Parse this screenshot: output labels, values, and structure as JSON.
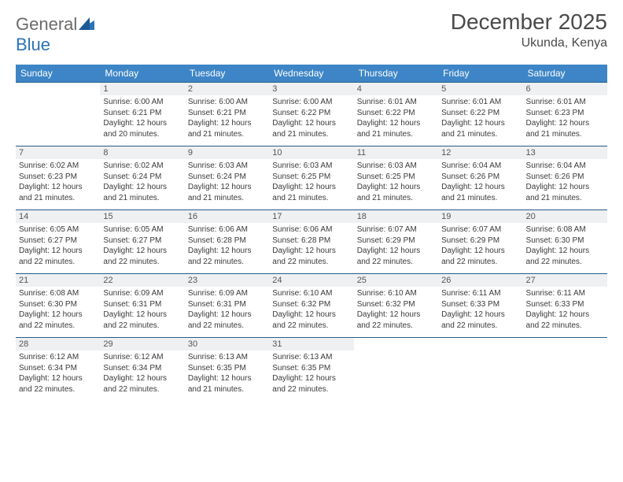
{
  "logo": {
    "text_general": "General",
    "text_blue": "Blue"
  },
  "title": "December 2025",
  "location": "Ukunda, Kenya",
  "colors": {
    "header_bg": "#3d85c6",
    "header_text": "#ffffff",
    "daynum_bg": "#eef0f2",
    "row_divider": "#2a5d8a",
    "logo_gray": "#6a6a6a",
    "logo_blue": "#2a73b7"
  },
  "weekdays": [
    "Sunday",
    "Monday",
    "Tuesday",
    "Wednesday",
    "Thursday",
    "Friday",
    "Saturday"
  ],
  "weeks": [
    [
      null,
      {
        "n": "1",
        "sr": "6:00 AM",
        "ss": "6:21 PM",
        "dl": "12 hours and 20 minutes."
      },
      {
        "n": "2",
        "sr": "6:00 AM",
        "ss": "6:21 PM",
        "dl": "12 hours and 21 minutes."
      },
      {
        "n": "3",
        "sr": "6:00 AM",
        "ss": "6:22 PM",
        "dl": "12 hours and 21 minutes."
      },
      {
        "n": "4",
        "sr": "6:01 AM",
        "ss": "6:22 PM",
        "dl": "12 hours and 21 minutes."
      },
      {
        "n": "5",
        "sr": "6:01 AM",
        "ss": "6:22 PM",
        "dl": "12 hours and 21 minutes."
      },
      {
        "n": "6",
        "sr": "6:01 AM",
        "ss": "6:23 PM",
        "dl": "12 hours and 21 minutes."
      }
    ],
    [
      {
        "n": "7",
        "sr": "6:02 AM",
        "ss": "6:23 PM",
        "dl": "12 hours and 21 minutes."
      },
      {
        "n": "8",
        "sr": "6:02 AM",
        "ss": "6:24 PM",
        "dl": "12 hours and 21 minutes."
      },
      {
        "n": "9",
        "sr": "6:03 AM",
        "ss": "6:24 PM",
        "dl": "12 hours and 21 minutes."
      },
      {
        "n": "10",
        "sr": "6:03 AM",
        "ss": "6:25 PM",
        "dl": "12 hours and 21 minutes."
      },
      {
        "n": "11",
        "sr": "6:03 AM",
        "ss": "6:25 PM",
        "dl": "12 hours and 21 minutes."
      },
      {
        "n": "12",
        "sr": "6:04 AM",
        "ss": "6:26 PM",
        "dl": "12 hours and 21 minutes."
      },
      {
        "n": "13",
        "sr": "6:04 AM",
        "ss": "6:26 PM",
        "dl": "12 hours and 21 minutes."
      }
    ],
    [
      {
        "n": "14",
        "sr": "6:05 AM",
        "ss": "6:27 PM",
        "dl": "12 hours and 22 minutes."
      },
      {
        "n": "15",
        "sr": "6:05 AM",
        "ss": "6:27 PM",
        "dl": "12 hours and 22 minutes."
      },
      {
        "n": "16",
        "sr": "6:06 AM",
        "ss": "6:28 PM",
        "dl": "12 hours and 22 minutes."
      },
      {
        "n": "17",
        "sr": "6:06 AM",
        "ss": "6:28 PM",
        "dl": "12 hours and 22 minutes."
      },
      {
        "n": "18",
        "sr": "6:07 AM",
        "ss": "6:29 PM",
        "dl": "12 hours and 22 minutes."
      },
      {
        "n": "19",
        "sr": "6:07 AM",
        "ss": "6:29 PM",
        "dl": "12 hours and 22 minutes."
      },
      {
        "n": "20",
        "sr": "6:08 AM",
        "ss": "6:30 PM",
        "dl": "12 hours and 22 minutes."
      }
    ],
    [
      {
        "n": "21",
        "sr": "6:08 AM",
        "ss": "6:30 PM",
        "dl": "12 hours and 22 minutes."
      },
      {
        "n": "22",
        "sr": "6:09 AM",
        "ss": "6:31 PM",
        "dl": "12 hours and 22 minutes."
      },
      {
        "n": "23",
        "sr": "6:09 AM",
        "ss": "6:31 PM",
        "dl": "12 hours and 22 minutes."
      },
      {
        "n": "24",
        "sr": "6:10 AM",
        "ss": "6:32 PM",
        "dl": "12 hours and 22 minutes."
      },
      {
        "n": "25",
        "sr": "6:10 AM",
        "ss": "6:32 PM",
        "dl": "12 hours and 22 minutes."
      },
      {
        "n": "26",
        "sr": "6:11 AM",
        "ss": "6:33 PM",
        "dl": "12 hours and 22 minutes."
      },
      {
        "n": "27",
        "sr": "6:11 AM",
        "ss": "6:33 PM",
        "dl": "12 hours and 22 minutes."
      }
    ],
    [
      {
        "n": "28",
        "sr": "6:12 AM",
        "ss": "6:34 PM",
        "dl": "12 hours and 22 minutes."
      },
      {
        "n": "29",
        "sr": "6:12 AM",
        "ss": "6:34 PM",
        "dl": "12 hours and 22 minutes."
      },
      {
        "n": "30",
        "sr": "6:13 AM",
        "ss": "6:35 PM",
        "dl": "12 hours and 21 minutes."
      },
      {
        "n": "31",
        "sr": "6:13 AM",
        "ss": "6:35 PM",
        "dl": "12 hours and 22 minutes."
      },
      null,
      null,
      null
    ]
  ],
  "labels": {
    "sunrise": "Sunrise:",
    "sunset": "Sunset:",
    "daylight": "Daylight:"
  }
}
